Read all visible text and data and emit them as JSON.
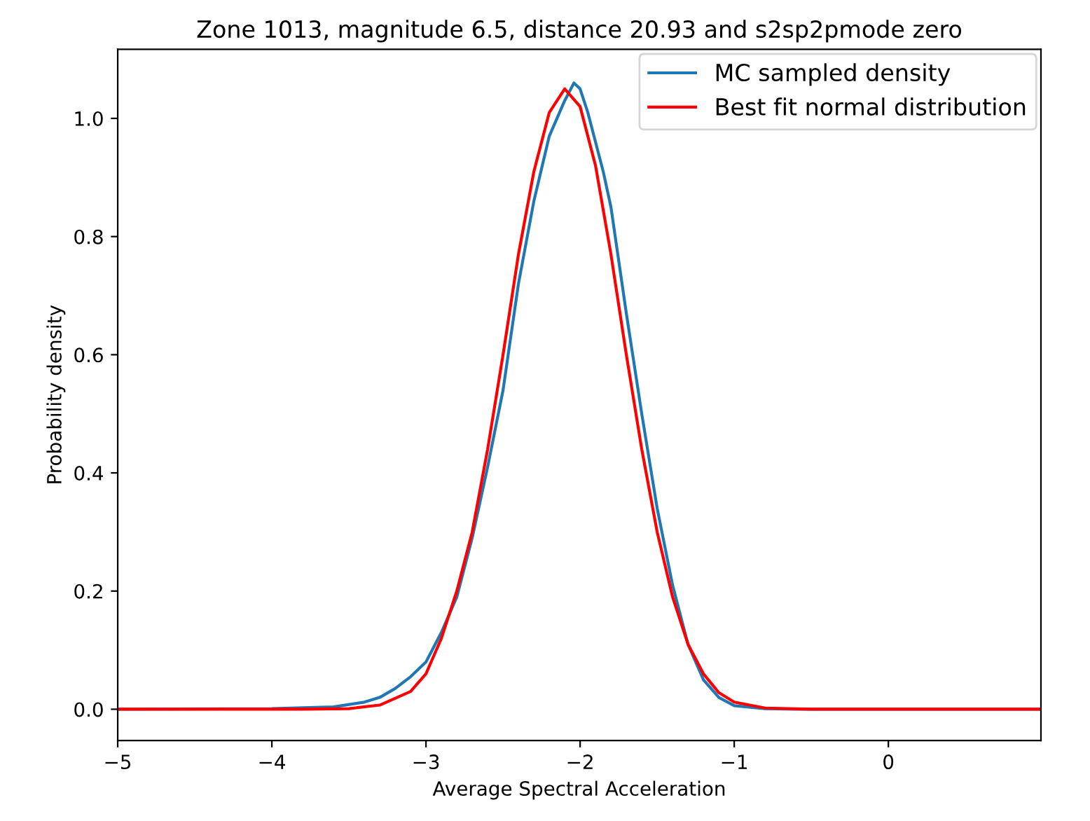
{
  "chart_data": {
    "type": "line",
    "title": "Zone 1013, magnitude 6.5, distance 20.93 and s2sp2pmode zero",
    "xlabel": "Average Spectral Acceleration",
    "ylabel": "Probability density",
    "series": [
      {
        "name": "MC sampled density",
        "color": "#1f77b4",
        "x": [
          -5,
          -4,
          -3.6,
          -3.4,
          -3.3,
          -3.2,
          -3.1,
          -3.0,
          -2.9,
          -2.8,
          -2.7,
          -2.6,
          -2.5,
          -2.45,
          -2.4,
          -2.3,
          -2.2,
          -2.1,
          -2.04,
          -2.0,
          -1.95,
          -1.9,
          -1.85,
          -1.8,
          -1.7,
          -1.6,
          -1.5,
          -1.4,
          -1.3,
          -1.2,
          -1.1,
          -1.0,
          -0.8,
          -0.6,
          0.99
        ],
        "values": [
          0,
          0.001,
          0.004,
          0.012,
          0.02,
          0.035,
          0.055,
          0.08,
          0.13,
          0.19,
          0.29,
          0.41,
          0.54,
          0.63,
          0.72,
          0.86,
          0.97,
          1.03,
          1.06,
          1.05,
          1.01,
          0.96,
          0.91,
          0.85,
          0.67,
          0.5,
          0.34,
          0.21,
          0.11,
          0.05,
          0.02,
          0.006,
          0.001,
          0,
          0
        ]
      },
      {
        "name": "Best fit normal distribution",
        "color": "#ff0000",
        "x": [
          -5,
          -3.8,
          -3.5,
          -3.3,
          -3.1,
          -3.0,
          -2.9,
          -2.8,
          -2.7,
          -2.6,
          -2.5,
          -2.4,
          -2.3,
          -2.2,
          -2.1,
          -2.0,
          -1.9,
          -1.8,
          -1.7,
          -1.6,
          -1.5,
          -1.4,
          -1.3,
          -1.2,
          -1.1,
          -1.0,
          -0.8,
          -0.5,
          0.99
        ],
        "values": [
          0,
          0,
          0.001,
          0.007,
          0.03,
          0.06,
          0.12,
          0.2,
          0.3,
          0.44,
          0.6,
          0.77,
          0.91,
          1.01,
          1.05,
          1.02,
          0.92,
          0.77,
          0.6,
          0.44,
          0.3,
          0.19,
          0.11,
          0.06,
          0.028,
          0.012,
          0.002,
          0,
          0
        ]
      }
    ],
    "xlim": [
      -5,
      0.99
    ],
    "xticks": [
      -5,
      -4,
      -3,
      -2,
      -1,
      0
    ],
    "ylim": [
      -0.053,
      1.117
    ],
    "yticks": [
      {
        "value": 0,
        "label": "0.0"
      },
      0.2,
      0.4,
      0.6,
      0.8,
      {
        "value": 1,
        "label": "1.0"
      }
    ],
    "legend": "top right",
    "grid": false
  }
}
